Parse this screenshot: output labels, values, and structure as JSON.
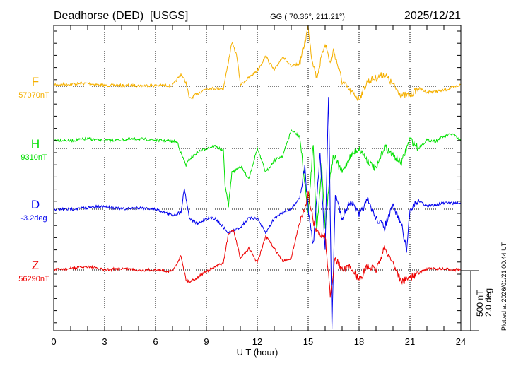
{
  "chart_data": {
    "type": "line",
    "title": "Deadhorse (DED)  [USGS]",
    "coords": "GG ( 70.36°, 211.21°)",
    "date": "2025/12/21",
    "xlabel": "U T (hour)",
    "xlim": [
      0,
      24
    ],
    "xticks": [
      "0",
      "3",
      "6",
      "9",
      "12",
      "15",
      "18",
      "21",
      "24"
    ],
    "grid": true,
    "scale_bar": {
      "nT": "500 nT",
      "deg": "2.0 deg",
      "value_nT": 500,
      "value_deg": 2.0
    },
    "plotted_note": "Plotted at 2026/01/21 00:44 UT",
    "series": [
      {
        "name": "F",
        "baseline_label": "57070nT",
        "unit": "nT",
        "color": "#f5b000",
        "points": [
          [
            0,
            12
          ],
          [
            1,
            18
          ],
          [
            2,
            24
          ],
          [
            3,
            6
          ],
          [
            4,
            6
          ],
          [
            5,
            6
          ],
          [
            6,
            6
          ],
          [
            7,
            6
          ],
          [
            7.5,
            100
          ],
          [
            7.8,
            30
          ],
          [
            8,
            -106
          ],
          [
            8.5,
            -60
          ],
          [
            9,
            -18
          ],
          [
            9.5,
            -18
          ],
          [
            10,
            -18
          ],
          [
            10.2,
            130
          ],
          [
            10.5,
            365
          ],
          [
            10.8,
            250
          ],
          [
            11,
            12
          ],
          [
            11.5,
            70
          ],
          [
            12,
            130
          ],
          [
            12.5,
            250
          ],
          [
            13,
            130
          ],
          [
            13.5,
            250
          ],
          [
            14,
            160
          ],
          [
            14.5,
            190
          ],
          [
            14.8,
            365
          ],
          [
            15,
            500
          ],
          [
            15.2,
            250
          ],
          [
            15.5,
            70
          ],
          [
            16,
            365
          ],
          [
            16.3,
            190
          ],
          [
            16.5,
            300
          ],
          [
            17,
            40
          ],
          [
            17.5,
            -48
          ],
          [
            18,
            -106
          ],
          [
            18.5,
            40
          ],
          [
            19,
            70
          ],
          [
            19.5,
            100
          ],
          [
            20,
            12
          ],
          [
            20.5,
            -75
          ],
          [
            21,
            -75
          ],
          [
            21.5,
            -18
          ],
          [
            22,
            -48
          ],
          [
            23,
            -35
          ],
          [
            24,
            12
          ]
        ]
      },
      {
        "name": "H",
        "baseline_label": "9310nT",
        "unit": "nT",
        "color": "#00e000",
        "points": [
          [
            0,
            70
          ],
          [
            1,
            65
          ],
          [
            2,
            80
          ],
          [
            3,
            65
          ],
          [
            4,
            70
          ],
          [
            5,
            80
          ],
          [
            6,
            70
          ],
          [
            7,
            60
          ],
          [
            7.3,
            50
          ],
          [
            7.5,
            -40
          ],
          [
            7.8,
            -140
          ],
          [
            8,
            -90
          ],
          [
            8.5,
            -30
          ],
          [
            9,
            0
          ],
          [
            9.5,
            20
          ],
          [
            10,
            -20
          ],
          [
            10.1,
            -300
          ],
          [
            10.3,
            -480
          ],
          [
            10.5,
            -200
          ],
          [
            11,
            -150
          ],
          [
            11.5,
            -250
          ],
          [
            12,
            0
          ],
          [
            12.5,
            -200
          ],
          [
            13,
            -100
          ],
          [
            13.5,
            -60
          ],
          [
            14,
            150
          ],
          [
            14.5,
            100
          ],
          [
            15,
            -550
          ],
          [
            15.3,
            50
          ],
          [
            15.5,
            -700
          ],
          [
            15.8,
            -150
          ],
          [
            16,
            -650
          ],
          [
            16.3,
            -200
          ],
          [
            16.5,
            -60
          ],
          [
            17,
            -200
          ],
          [
            17.5,
            -60
          ],
          [
            18,
            0
          ],
          [
            18.5,
            -100
          ],
          [
            19,
            -180
          ],
          [
            19.5,
            20
          ],
          [
            20,
            -60
          ],
          [
            20.5,
            -120
          ],
          [
            21,
            80
          ],
          [
            21.5,
            0
          ],
          [
            22,
            70
          ],
          [
            22.5,
            60
          ],
          [
            23,
            100
          ],
          [
            23.5,
            120
          ],
          [
            24,
            60
          ]
        ]
      },
      {
        "name": "D",
        "baseline_label": "-3.2deg",
        "unit": "deg",
        "color": "#0000ee",
        "points": [
          [
            0,
            0
          ],
          [
            1,
            0
          ],
          [
            2,
            0.05
          ],
          [
            3,
            0.1
          ],
          [
            4,
            0
          ],
          [
            5,
            0.05
          ],
          [
            6,
            0
          ],
          [
            7,
            -0.2
          ],
          [
            7.5,
            -0.1
          ],
          [
            7.7,
            0.7
          ],
          [
            8,
            -0.3
          ],
          [
            8.5,
            -0.5
          ],
          [
            9,
            -0.3
          ],
          [
            9.5,
            -0.3
          ],
          [
            10,
            -0.6
          ],
          [
            10.3,
            -0.8
          ],
          [
            11,
            -0.6
          ],
          [
            11.5,
            -0.3
          ],
          [
            12,
            -0.3
          ],
          [
            12.5,
            -0.8
          ],
          [
            13,
            -0.3
          ],
          [
            13.5,
            -0.1
          ],
          [
            14,
            0
          ],
          [
            14.5,
            0.4
          ],
          [
            14.8,
            1.4
          ],
          [
            15,
            0
          ],
          [
            15.3,
            -1.2
          ],
          [
            15.7,
            1.8
          ],
          [
            16,
            -1.3
          ],
          [
            16.2,
            3.8
          ],
          [
            16.4,
            -4.0
          ],
          [
            16.6,
            0.5
          ],
          [
            17,
            -0.3
          ],
          [
            17.5,
            0.3
          ],
          [
            18,
            -0.2
          ],
          [
            18.5,
            0.3
          ],
          [
            19,
            -0.3
          ],
          [
            19.5,
            -0.6
          ],
          [
            20,
            0.1
          ],
          [
            20.5,
            -0.5
          ],
          [
            20.8,
            -1.4
          ],
          [
            21,
            0
          ],
          [
            21.5,
            0.3
          ],
          [
            22,
            0.1
          ],
          [
            23,
            0.2
          ],
          [
            24,
            0.2
          ]
        ]
      },
      {
        "name": "Z",
        "baseline_label": "56290nT",
        "unit": "nT",
        "color": "#ee0000",
        "points": [
          [
            0,
            0
          ],
          [
            1,
            12
          ],
          [
            2,
            30
          ],
          [
            3,
            0
          ],
          [
            4,
            12
          ],
          [
            5,
            0
          ],
          [
            6,
            0
          ],
          [
            7,
            -12
          ],
          [
            7.5,
            120
          ],
          [
            7.8,
            -80
          ],
          [
            8,
            -100
          ],
          [
            8.5,
            -60
          ],
          [
            9,
            -12
          ],
          [
            10,
            60
          ],
          [
            10.3,
            300
          ],
          [
            10.6,
            330
          ],
          [
            11,
            100
          ],
          [
            11.5,
            180
          ],
          [
            12,
            60
          ],
          [
            12.5,
            280
          ],
          [
            13,
            180
          ],
          [
            13.5,
            70
          ],
          [
            14,
            100
          ],
          [
            14.5,
            400
          ],
          [
            14.8,
            500
          ],
          [
            15,
            650
          ],
          [
            15.3,
            400
          ],
          [
            15.6,
            300
          ],
          [
            16,
            280
          ],
          [
            16.3,
            -200
          ],
          [
            16.6,
            100
          ],
          [
            17,
            0
          ],
          [
            17.5,
            20
          ],
          [
            18,
            -80
          ],
          [
            18.5,
            30
          ],
          [
            19,
            0
          ],
          [
            19.5,
            180
          ],
          [
            20,
            60
          ],
          [
            20.5,
            -100
          ],
          [
            21,
            -60
          ],
          [
            21.5,
            -30
          ],
          [
            22,
            12
          ],
          [
            23,
            6
          ],
          [
            24,
            0
          ]
        ]
      }
    ]
  }
}
